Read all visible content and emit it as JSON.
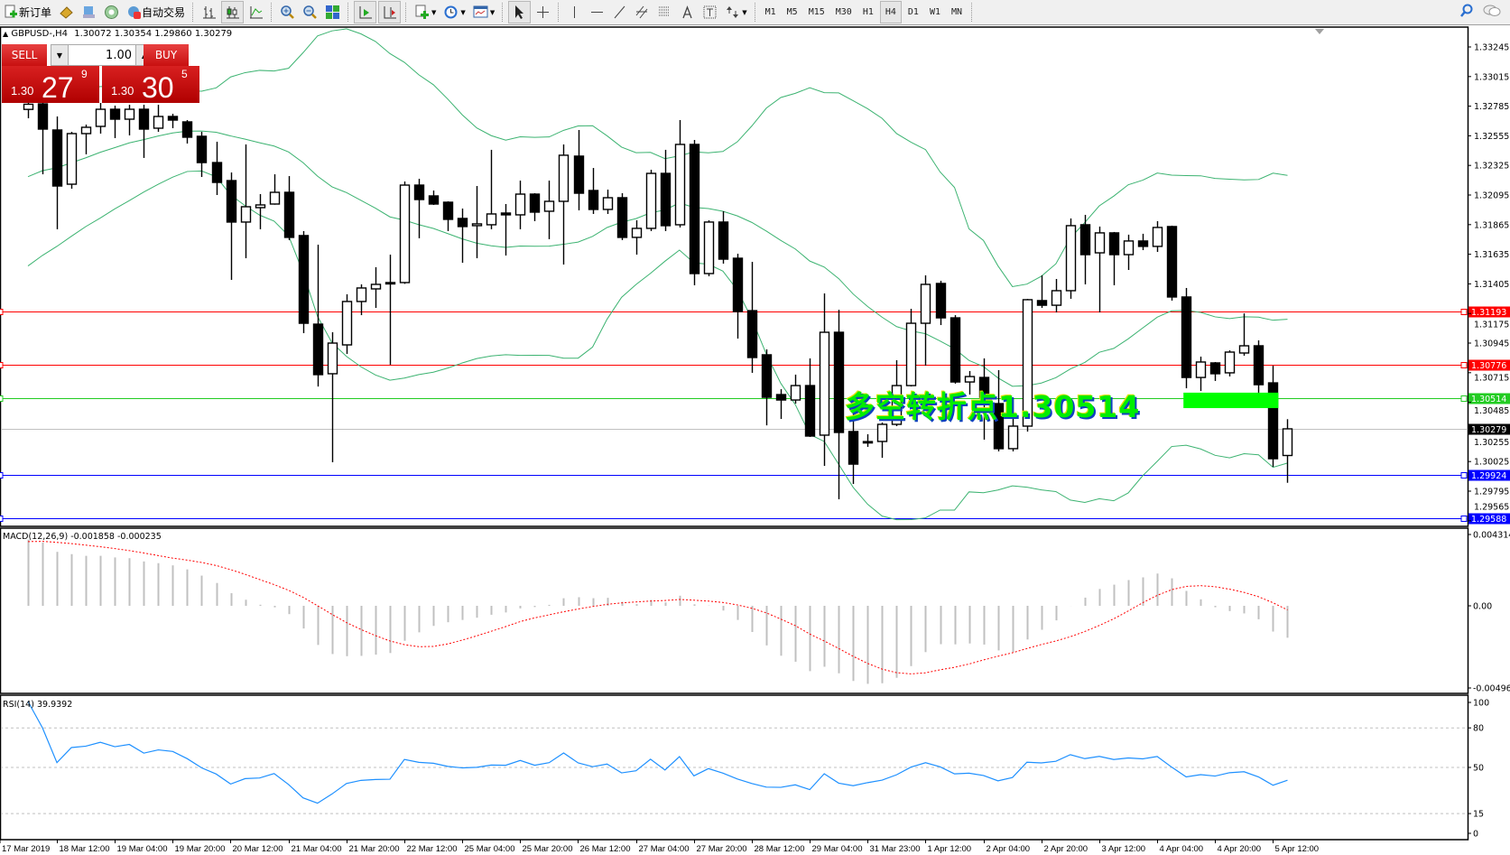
{
  "toolbar": {
    "new_order": "新订单",
    "auto_trade": "自动交易",
    "timeframes": [
      "M1",
      "M5",
      "M15",
      "M30",
      "H1",
      "H4",
      "D1",
      "W1",
      "MN"
    ],
    "active_timeframe": "H4"
  },
  "trade_panel": {
    "sell_label": "SELL",
    "buy_label": "BUY",
    "lot": "1.00",
    "sell_price": {
      "prefix": "1.30",
      "big": "27",
      "sup": "9"
    },
    "buy_price": {
      "prefix": "1.30",
      "big": "30",
      "sup": "5"
    }
  },
  "chart_header": {
    "symbol": "GBPUSD-,H4",
    "ohlc": "1.30072 1.30354 1.29860 1.30279"
  },
  "annotation": {
    "text": "多空转折点1.30514",
    "color": "#00ee00"
  },
  "chart_data": {
    "type": "candlestick",
    "ylim": [
      1.295,
      1.3342
    ],
    "price_ticks": [
      "1.33245",
      "1.33015",
      "1.32785",
      "1.32555",
      "1.32325",
      "1.32095",
      "1.31865",
      "1.31635",
      "1.31405",
      "1.31175",
      "1.30945",
      "1.30715",
      "1.30485",
      "1.30255",
      "1.30025",
      "1.29795",
      "1.29565"
    ],
    "time_labels": [
      "17 Mar 2019",
      "18 Mar 12:00",
      "19 Mar 04:00",
      "19 Mar 20:00",
      "20 Mar 12:00",
      "21 Mar 04:00",
      "21 Mar 20:00",
      "22 Mar 12:00",
      "25 Mar 04:00",
      "25 Mar 20:00",
      "26 Mar 12:00",
      "27 Mar 04:00",
      "27 Mar 20:00",
      "28 Mar 12:00",
      "29 Mar 04:00",
      "31 Mar 23:00",
      "1 Apr 12:00",
      "2 Apr 04:00",
      "2 Apr 20:00",
      "3 Apr 12:00",
      "4 Apr 04:00",
      "4 Apr 20:00",
      "5 Apr 12:00"
    ],
    "hlines": [
      {
        "price": "1.31193",
        "color": "#ff0000"
      },
      {
        "price": "1.30776",
        "color": "#ff0000"
      },
      {
        "price": "1.30514",
        "color": "#22cc22"
      },
      {
        "price": "1.30279",
        "color": "#000000",
        "line_color": "#c0c0c0"
      },
      {
        "price": "1.29924",
        "color": "#0000ff"
      },
      {
        "price": "1.29588",
        "color": "#0000ff"
      }
    ],
    "zone": {
      "from": 1.3056,
      "to": 1.3044,
      "color": "#00ff00"
    },
    "candles": [
      [
        1.3276,
        1.3288,
        1.32691,
        1.328
      ],
      [
        1.32803,
        1.3285,
        1.32256,
        1.32607
      ],
      [
        1.326,
        1.32705,
        1.31829,
        1.32165
      ],
      [
        1.32179,
        1.32586,
        1.32144,
        1.32572
      ],
      [
        1.32572,
        1.32642,
        1.32411,
        1.32621
      ],
      [
        1.32628,
        1.3281,
        1.32572,
        1.32761
      ],
      [
        1.32761,
        1.32789,
        1.32537,
        1.32684
      ],
      [
        1.32684,
        1.32796,
        1.32558,
        1.32761
      ],
      [
        1.32761,
        1.32796,
        1.32383,
        1.32607
      ],
      [
        1.32614,
        1.32796,
        1.32586,
        1.32705
      ],
      [
        1.32705,
        1.32726,
        1.32614,
        1.32677
      ],
      [
        1.32663,
        1.32677,
        1.32495,
        1.32544
      ],
      [
        1.32551,
        1.32586,
        1.32235,
        1.32347
      ],
      [
        1.32347,
        1.32509,
        1.32095,
        1.32193
      ],
      [
        1.32207,
        1.3227,
        1.31436,
        1.31885
      ],
      [
        1.31885,
        1.32488,
        1.31604,
        1.32004
      ],
      [
        1.31997,
        1.32102,
        1.31829,
        1.32018
      ],
      [
        1.32025,
        1.32256,
        1.3202,
        1.32116
      ],
      [
        1.32116,
        1.32242,
        1.31745,
        1.31766
      ],
      [
        1.3178,
        1.31815,
        1.31022,
        1.31099
      ],
      [
        1.31092,
        1.31709,
        1.30608,
        1.307
      ],
      [
        1.30707,
        1.31029,
        1.30019,
        1.30945
      ],
      [
        1.30931,
        1.31324,
        1.30861,
        1.31268
      ],
      [
        1.31268,
        1.31401,
        1.31162,
        1.31373
      ],
      [
        1.31366,
        1.31534,
        1.31218,
        1.31401
      ],
      [
        1.31415,
        1.31632,
        1.30777,
        1.3141
      ],
      [
        1.31415,
        1.322,
        1.31405,
        1.32172
      ],
      [
        1.32172,
        1.32221,
        1.31759,
        1.3206
      ],
      [
        1.32088,
        1.3213,
        1.32018,
        1.32025
      ],
      [
        1.32039,
        1.32046,
        1.31815,
        1.31906
      ],
      [
        1.31913,
        1.3199,
        1.31569,
        1.3185
      ],
      [
        1.31857,
        1.32165,
        1.31604,
        1.31871
      ],
      [
        1.31864,
        1.32446,
        1.31829,
        1.31948
      ],
      [
        1.31955,
        1.32025,
        1.31625,
        1.31941
      ],
      [
        1.31941,
        1.32207,
        1.31829,
        1.32102
      ],
      [
        1.32102,
        1.32109,
        1.31892,
        1.31962
      ],
      [
        1.31969,
        1.32207,
        1.31752,
        1.32046
      ],
      [
        1.32046,
        1.32488,
        1.31555,
        1.32404
      ],
      [
        1.32397,
        1.326,
        1.31976,
        1.32109
      ],
      [
        1.3213,
        1.32305,
        1.31948,
        1.31983
      ],
      [
        1.31983,
        1.32137,
        1.31948,
        1.32074
      ],
      [
        1.32074,
        1.32109,
        1.31745,
        1.31766
      ],
      [
        1.31766,
        1.31899,
        1.31632,
        1.31836
      ],
      [
        1.31836,
        1.32291,
        1.31815,
        1.32263
      ],
      [
        1.32263,
        1.32446,
        1.31815,
        1.31857
      ],
      [
        1.31864,
        1.32677,
        1.31843,
        1.32488
      ],
      [
        1.32488,
        1.32523,
        1.31394,
        1.31485
      ],
      [
        1.31485,
        1.31899,
        1.31464,
        1.31885
      ],
      [
        1.31885,
        1.31969,
        1.31562,
        1.31597
      ],
      [
        1.31604,
        1.31639,
        1.3098,
        1.3119
      ],
      [
        1.31197,
        1.31576,
        1.30714,
        1.30833
      ],
      [
        1.30854,
        1.30896,
        1.30306,
        1.30524
      ],
      [
        1.30545,
        1.30587,
        1.30356,
        1.30503
      ],
      [
        1.30503,
        1.307,
        1.30475,
        1.30615
      ],
      [
        1.30615,
        1.30826,
        1.30216,
        1.30223
      ],
      [
        1.3023,
        1.31331,
        1.29991,
        1.31029
      ],
      [
        1.31029,
        1.31204,
        1.29732,
        1.30251
      ],
      [
        1.30258,
        1.30475,
        1.29851,
        1.30005
      ],
      [
        1.3018,
        1.30237,
        1.30139,
        1.30175
      ],
      [
        1.30181,
        1.30328,
        1.30054,
        1.30314
      ],
      [
        1.30314,
        1.30812,
        1.303,
        1.30615
      ],
      [
        1.30615,
        1.31211,
        1.30608,
        1.31099
      ],
      [
        1.31099,
        1.31471,
        1.3077,
        1.31401
      ],
      [
        1.31408,
        1.31429,
        1.31085,
        1.31141
      ],
      [
        1.31141,
        1.31162,
        1.3063,
        1.30643
      ],
      [
        1.30643,
        1.30728,
        1.30545,
        1.30685
      ],
      [
        1.30678,
        1.30826,
        1.30195,
        1.30524
      ],
      [
        1.30475,
        1.30735,
        1.30104,
        1.30125
      ],
      [
        1.30125,
        1.30517,
        1.30104,
        1.303
      ],
      [
        1.303,
        1.31289,
        1.30258,
        1.31282
      ],
      [
        1.31275,
        1.31471,
        1.31218,
        1.31239
      ],
      [
        1.31239,
        1.31443,
        1.31183,
        1.31352
      ],
      [
        1.31352,
        1.31913,
        1.31289,
        1.31857
      ],
      [
        1.31864,
        1.31941,
        1.31401,
        1.31632
      ],
      [
        1.31646,
        1.3185,
        1.31183,
        1.31801
      ],
      [
        1.31801,
        1.31808,
        1.31394,
        1.31632
      ],
      [
        1.31632,
        1.31787,
        1.31513,
        1.31738
      ],
      [
        1.31738,
        1.31794,
        1.31667,
        1.31696
      ],
      [
        1.31696,
        1.31892,
        1.31653,
        1.31843
      ],
      [
        1.3185,
        1.31857,
        1.31275,
        1.31303
      ],
      [
        1.31303,
        1.31373,
        1.30594,
        1.30678
      ],
      [
        1.30678,
        1.3084,
        1.30573,
        1.30798
      ],
      [
        1.30791,
        1.30798,
        1.30651,
        1.30707
      ],
      [
        1.30714,
        1.30889,
        1.30686,
        1.30875
      ],
      [
        1.30868,
        1.31176,
        1.30847,
        1.30924
      ],
      [
        1.30924,
        1.30966,
        1.30538,
        1.30622
      ],
      [
        1.30636,
        1.3077,
        1.29984,
        1.30047
      ],
      [
        1.30072,
        1.30354,
        1.2986,
        1.30279
      ]
    ],
    "bollinger": {
      "period": 20,
      "deviation": 2,
      "color": "#3cb371"
    },
    "macd": {
      "label": "MACD(12,26,9)",
      "main": "-0.001858",
      "signal": "-0.000235",
      "ticks": [
        "0.004314",
        "0.00",
        "-0.004963"
      ],
      "range": [
        -0.004963,
        0.004314
      ],
      "hist_color": "#c0c0c0",
      "signal_color": "#ff0000"
    },
    "rsi": {
      "label": "RSI(14)",
      "value": "39.9392",
      "ticks": [
        "100",
        "80",
        "50",
        "15",
        "0"
      ],
      "levels": [
        80,
        50,
        15
      ],
      "color": "#1e90ff"
    }
  }
}
